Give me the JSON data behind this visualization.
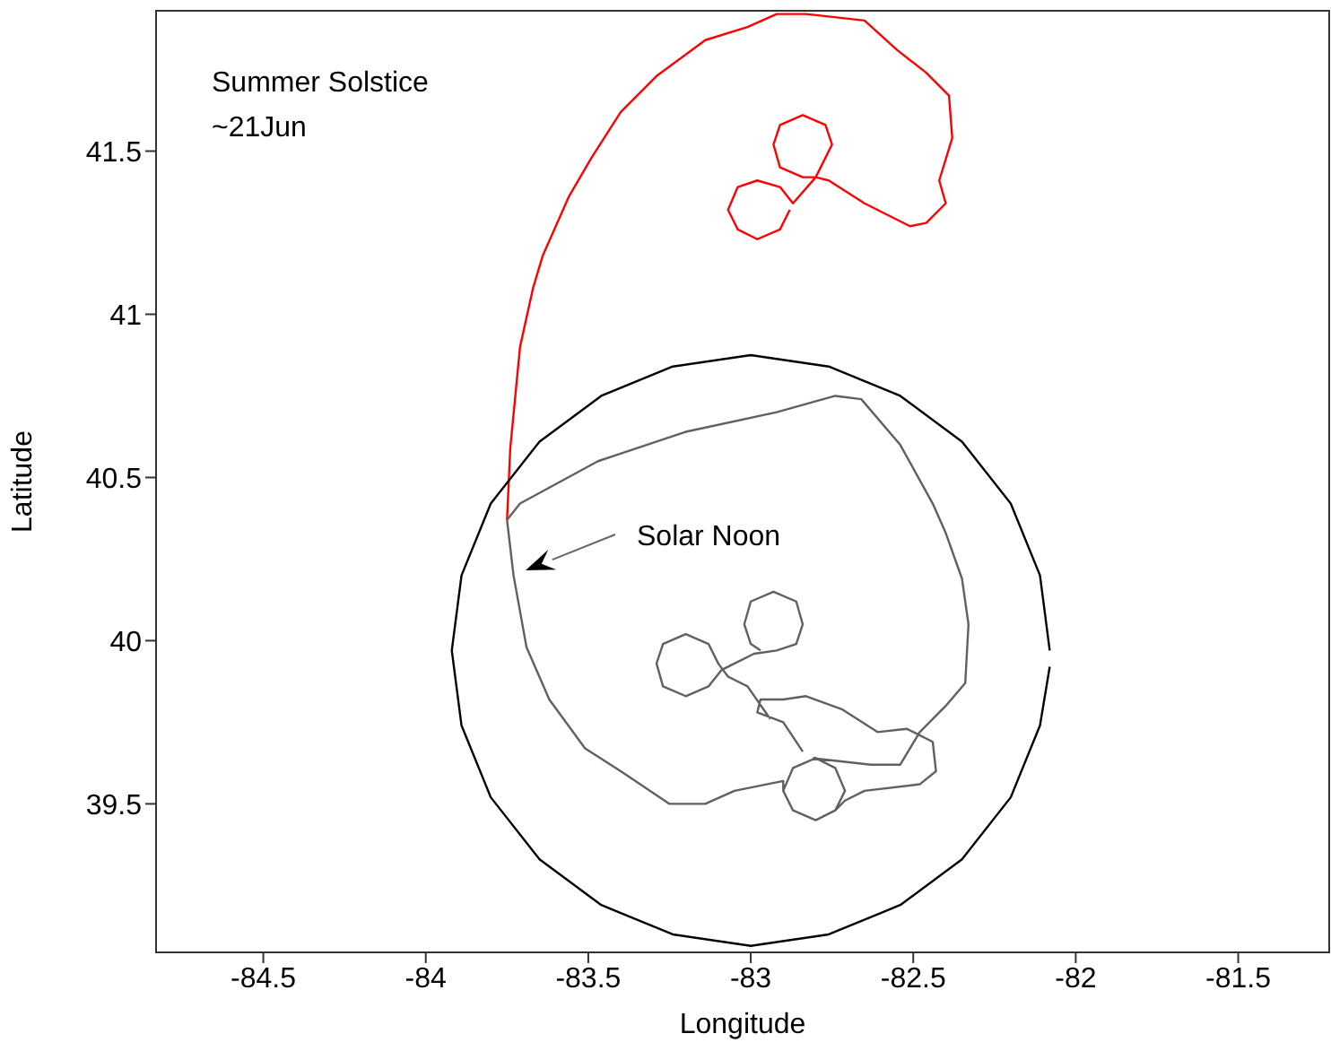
{
  "chart_data": {
    "type": "line",
    "xlabel": "Longitude",
    "ylabel": "Latitude",
    "xlim": [
      -84.83,
      -81.22
    ],
    "ylim": [
      39.045,
      41.93
    ],
    "xticks": [
      -84.5,
      -84,
      -83.5,
      -83,
      -82.5,
      -82,
      -81.5
    ],
    "yticks": [
      39.5,
      40,
      40.5,
      41,
      41.5
    ],
    "marker": "none",
    "line_style": "solid",
    "annotations": [
      "Summer Solstice",
      "~21Jun",
      "Solar Noon"
    ],
    "series": [
      {
        "color": "#ff0000",
        "x": [
          -83.75,
          -83.74,
          -83.71,
          -83.67,
          -83.64,
          -83.56,
          -83.49,
          -83.4,
          -83.29,
          -83.14,
          -83.01,
          -82.92,
          -82.83,
          -82.65,
          -82.55,
          -82.46,
          -82.39,
          -82.38,
          -82.42,
          -82.4,
          -82.46,
          -82.51,
          -82.65,
          -82.76,
          -82.8,
          -82.75,
          -82.77,
          -82.84,
          -82.91,
          -82.93,
          -82.91,
          -82.84,
          -82.8,
          -82.87,
          -82.91,
          -82.98,
          -83.04,
          -83.07,
          -83.04,
          -82.98,
          -82.91,
          -82.88
        ],
        "values": [
          40.37,
          40.59,
          40.9,
          41.08,
          41.18,
          41.36,
          41.48,
          41.62,
          41.73,
          41.84,
          41.88,
          41.92,
          41.92,
          41.9,
          41.81,
          41.74,
          41.67,
          41.54,
          41.41,
          41.34,
          41.28,
          41.27,
          41.34,
          41.41,
          41.42,
          41.52,
          41.58,
          41.61,
          41.58,
          41.52,
          41.45,
          41.42,
          41.42,
          41.34,
          41.39,
          41.41,
          41.39,
          41.32,
          41.26,
          41.23,
          41.26,
          41.32
        ]
      },
      {
        "color": "#606060",
        "x": [
          -82.81,
          -82.63,
          -82.54,
          -82.48,
          -82.4,
          -82.34,
          -82.33,
          -82.35,
          -82.4,
          -82.44,
          -82.54,
          -82.66,
          -82.74,
          -82.92,
          -83.2,
          -83.47,
          -83.71,
          -83.75,
          -83.73,
          -83.69,
          -83.62,
          -83.51,
          -83.4,
          -83.25,
          -83.14,
          -83.05,
          -82.9,
          -82.9,
          -82.87,
          -82.8,
          -82.74,
          -82.71,
          -82.74,
          -82.8,
          -82.87,
          -82.9,
          -82.87,
          -82.8,
          -82.74,
          -82.71,
          -82.65,
          -82.48,
          -82.43,
          -82.44,
          -82.52,
          -82.61,
          -82.72,
          -82.83,
          -82.9,
          -82.97,
          -82.98,
          -82.9,
          -82.84,
          null,
          -82.94,
          -83.01,
          -83.07,
          -83.1,
          -83.13,
          -83.2,
          -83.27,
          -83.29,
          -83.27,
          -83.2,
          -83.13,
          -83.09,
          -83.05,
          -82.99,
          -82.92,
          -82.86,
          -82.84,
          -82.86,
          -82.93,
          -83.0,
          -83.02,
          -83.0,
          -82.97
        ],
        "values": [
          39.64,
          39.62,
          39.62,
          39.72,
          39.8,
          39.87,
          40.05,
          40.19,
          40.33,
          40.42,
          40.6,
          40.74,
          40.75,
          40.7,
          40.64,
          40.55,
          40.42,
          40.37,
          40.2,
          39.98,
          39.82,
          39.67,
          39.6,
          39.5,
          39.5,
          39.54,
          39.57,
          39.54,
          39.48,
          39.45,
          39.48,
          39.54,
          39.61,
          39.64,
          39.61,
          39.54,
          39.48,
          39.45,
          39.48,
          39.51,
          39.54,
          39.56,
          39.6,
          39.69,
          39.73,
          39.72,
          39.79,
          39.83,
          39.82,
          39.82,
          39.78,
          39.75,
          39.66,
          null,
          39.76,
          39.86,
          39.89,
          39.93,
          39.99,
          40.02,
          39.99,
          39.93,
          39.86,
          39.83,
          39.86,
          39.91,
          39.93,
          39.96,
          39.97,
          39.99,
          40.05,
          40.12,
          40.15,
          40.12,
          40.05,
          39.99,
          39.97
        ]
      },
      {
        "color": "#000000",
        "x": [
          -82.08,
          -82.11,
          -82.2,
          -82.35,
          -82.54,
          -82.76,
          -83.0,
          -83.24,
          -83.46,
          -83.65,
          -83.8,
          -83.89,
          -83.92,
          -83.89,
          -83.8,
          -83.65,
          -83.46,
          -83.24,
          -83.0,
          -82.76,
          -82.54,
          -82.35,
          -82.2,
          -82.11,
          -82.08
        ],
        "values": [
          39.97,
          40.2,
          40.42,
          40.61,
          40.75,
          40.84,
          40.875,
          40.84,
          40.75,
          40.61,
          40.42,
          40.2,
          39.97,
          39.74,
          39.52,
          39.33,
          39.19,
          39.1,
          39.065,
          39.1,
          39.19,
          39.33,
          39.52,
          39.74,
          39.92
        ]
      }
    ]
  }
}
